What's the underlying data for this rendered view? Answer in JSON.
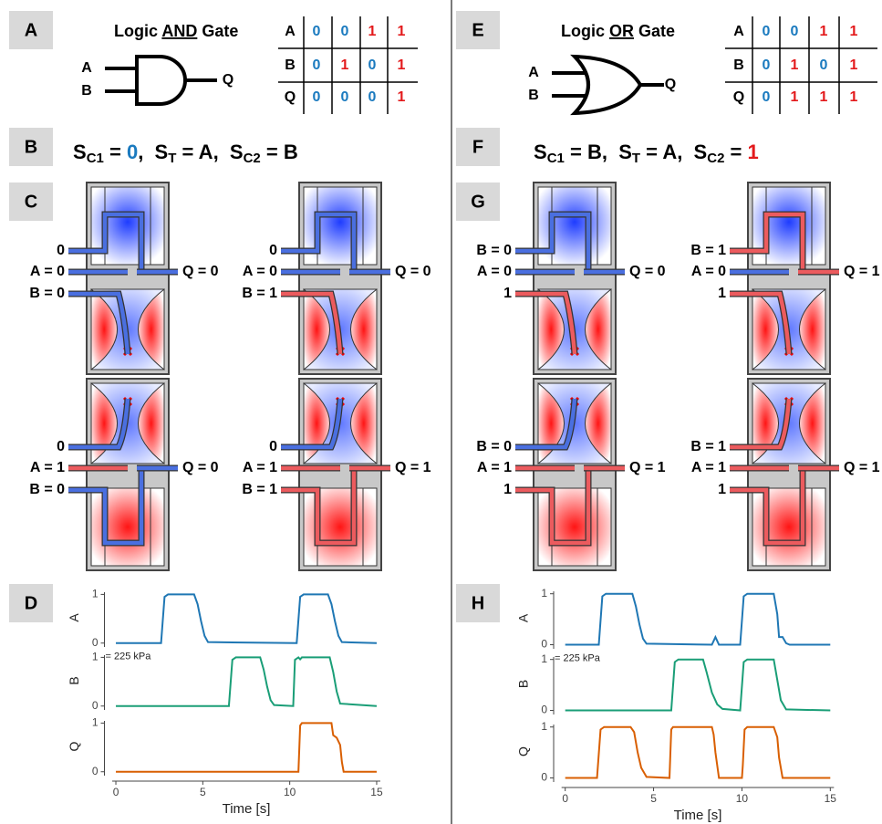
{
  "palette": {
    "0": "#1a7abf",
    "1": "#e31a1c"
  },
  "left": {
    "panels": [
      "A",
      "B",
      "C",
      "D"
    ],
    "gate": {
      "title": [
        "Logic ",
        "AND",
        " Gate"
      ],
      "pins": [
        "A",
        "B",
        "Q"
      ]
    },
    "table": [
      [
        "A",
        "0",
        "0",
        "1",
        "1"
      ],
      [
        "B",
        "0",
        "1",
        "0",
        "1"
      ],
      [
        "Q",
        "0",
        "0",
        "0",
        "1"
      ]
    ],
    "equation": [
      {
        "base": "S",
        "sub": "C1",
        "rest": " = ",
        "value": "0",
        "sep": ",  "
      },
      {
        "base": "S",
        "sub": "T",
        "rest": " = ",
        "value": "A",
        "sep": ",  "
      },
      {
        "base": "S",
        "sub": "C2",
        "rest": " = ",
        "value": "B"
      }
    ],
    "valves": [
      [
        "0",
        "A = 0",
        "B = 0",
        "Q = 0"
      ],
      [
        "0",
        "A = 0",
        "B = 1",
        "Q = 0"
      ],
      [
        "0",
        "A = 1",
        "B = 0",
        "Q = 0"
      ],
      [
        "0",
        "A = 1",
        "B = 1",
        "Q = 1"
      ]
    ]
  },
  "right": {
    "panels": [
      "E",
      "F",
      "G",
      "H"
    ],
    "gate": {
      "title": [
        "Logic ",
        "OR",
        " Gate"
      ],
      "pins": [
        "A",
        "B",
        "Q"
      ]
    },
    "table": [
      [
        "A",
        "0",
        "0",
        "1",
        "1"
      ],
      [
        "B",
        "0",
        "1",
        "0",
        "1"
      ],
      [
        "Q",
        "0",
        "1",
        "1",
        "1"
      ]
    ],
    "equation": [
      {
        "base": "S",
        "sub": "C1",
        "rest": " = ",
        "value": "B",
        "sep": ",  "
      },
      {
        "base": "S",
        "sub": "T",
        "rest": " = ",
        "value": "A",
        "sep": ",  "
      },
      {
        "base": "S",
        "sub": "C2",
        "rest": " = ",
        "value": "1"
      }
    ],
    "valves": [
      [
        "B = 0",
        "A = 0",
        "1",
        "Q = 0"
      ],
      [
        "B = 1",
        "A = 0",
        "1",
        "Q = 1"
      ],
      [
        "B = 0",
        "A = 1",
        "1",
        "Q = 1"
      ],
      [
        "B = 1",
        "A = 1",
        "1",
        "Q = 1"
      ]
    ]
  },
  "chart_data": [
    {
      "type": "line",
      "xlabel": "Time [s]",
      "xlim": [
        -0.5,
        15.5
      ],
      "xticks": [
        0,
        5,
        10,
        15
      ],
      "ylim": [
        -0.08,
        1.12
      ],
      "yticks": [
        0,
        1
      ],
      "annotation": "= 225 kPa",
      "series": [
        {
          "name": "A",
          "color": "#1f77b4",
          "x": [
            0,
            2.6,
            2.8,
            3,
            4.5,
            4.7,
            4.9,
            5.1,
            5.3,
            10.4,
            10.6,
            10.8,
            12.2,
            12.4,
            12.6,
            12.8,
            13,
            15
          ],
          "values": [
            0,
            0,
            0.95,
            1,
            1,
            0.8,
            0.45,
            0.15,
            0.02,
            0,
            0.95,
            1,
            1,
            0.8,
            0.45,
            0.15,
            0.02,
            0
          ]
        },
        {
          "name": "B",
          "color": "#1a9e77",
          "x": [
            0,
            6.5,
            6.7,
            6.9,
            8.3,
            8.5,
            8.7,
            8.9,
            9.1,
            10.2,
            10.3,
            10.5,
            10.6,
            10.7,
            12.3,
            12.5,
            12.7,
            12.9,
            15
          ],
          "values": [
            0,
            0,
            0.95,
            1,
            1,
            0.75,
            0.4,
            0.12,
            0.02,
            0,
            0.95,
            1,
            0.96,
            1,
            1,
            0.7,
            0.3,
            0.05,
            0
          ]
        },
        {
          "name": "Q",
          "color": "#d95f02",
          "x": [
            0,
            10.5,
            10.6,
            10.7,
            12.4,
            12.5,
            12.7,
            12.9,
            13,
            13.1,
            15
          ],
          "values": [
            0,
            0,
            0.95,
            1,
            1,
            0.75,
            0.7,
            0.55,
            0.2,
            0,
            0
          ]
        }
      ]
    },
    {
      "type": "line",
      "xlabel": "Time [s]",
      "xlim": [
        -0.5,
        15.5
      ],
      "xticks": [
        0,
        5,
        10,
        15
      ],
      "ylim": [
        -0.08,
        1.12
      ],
      "yticks": [
        0,
        1
      ],
      "annotation": "= 225 kPa",
      "series": [
        {
          "name": "A",
          "color": "#1f77b4",
          "x": [
            0,
            1.9,
            2.1,
            2.3,
            3.8,
            4,
            4.2,
            4.4,
            4.6,
            8.3,
            8.5,
            8.7,
            9.9,
            10.1,
            10.3,
            11.8,
            12,
            12.1,
            12.3,
            12.5,
            12.7,
            15
          ],
          "values": [
            0,
            0,
            0.95,
            1,
            1,
            0.75,
            0.4,
            0.12,
            0.02,
            0,
            0.15,
            0,
            0,
            0.95,
            1,
            1,
            0.6,
            0.15,
            0.15,
            0.03,
            0,
            0
          ]
        },
        {
          "name": "B",
          "color": "#1a9e77",
          "x": [
            0,
            6,
            6.2,
            6.4,
            7.8,
            8,
            8.3,
            8.6,
            8.9,
            9.9,
            10.1,
            10.3,
            11.8,
            12,
            12.2,
            12.5,
            15
          ],
          "values": [
            0,
            0,
            0.95,
            1,
            1,
            0.75,
            0.35,
            0.12,
            0.03,
            0,
            0.95,
            1,
            1,
            0.6,
            0.2,
            0.02,
            0
          ]
        },
        {
          "name": "Q",
          "color": "#d95f02",
          "x": [
            0,
            1.8,
            2,
            2.2,
            3.7,
            3.9,
            4.1,
            4.3,
            4.6,
            5.9,
            6,
            6.1,
            8.3,
            8.4,
            8.5,
            8.7,
            9.8,
            10,
            10.05,
            10.15,
            10.3,
            11.8,
            12,
            12.1,
            12.3,
            15
          ],
          "values": [
            0,
            0,
            0.95,
            1,
            1,
            0.9,
            0.5,
            0.2,
            0.02,
            0,
            0.95,
            1,
            1,
            0.85,
            0.5,
            0,
            0,
            0,
            0.25,
            0.95,
            1,
            1,
            0.8,
            0.4,
            0,
            0
          ]
        }
      ]
    }
  ]
}
